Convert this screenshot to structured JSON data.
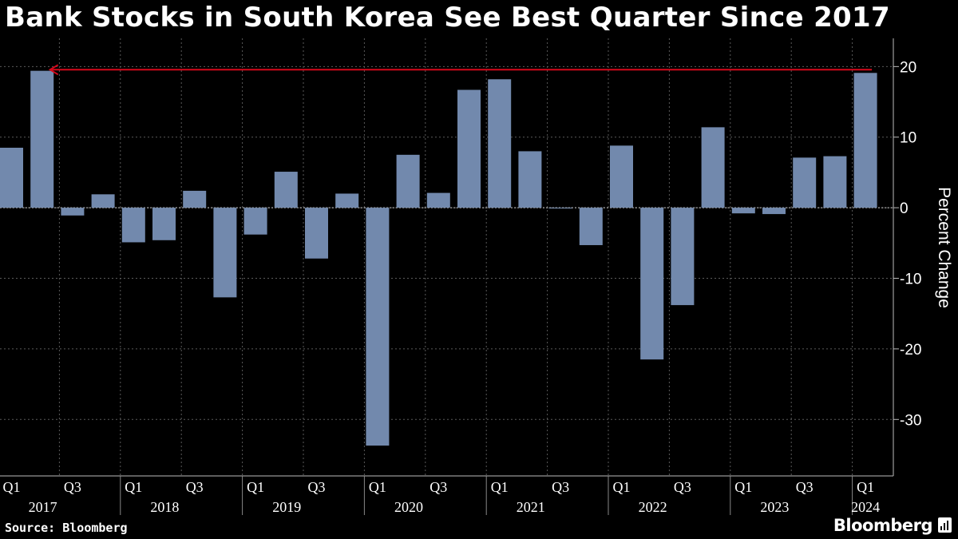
{
  "title": "Bank Stocks in South Korea See Best Quarter Since 2017",
  "source": "Source: Bloomberg",
  "brand": "Bloomberg",
  "colors": {
    "bar": "#7289ad",
    "arrow": "#d7081b",
    "grid": "#5a5a5a",
    "background": "#000000"
  },
  "chart_data": {
    "type": "bar",
    "ylabel": "Percent Change",
    "ylim": [
      -38,
      24
    ],
    "yticks": [
      20,
      10,
      0,
      -10,
      -20,
      -30
    ],
    "grid": true,
    "categories": [
      "2017 Q1",
      "2017 Q2",
      "2017 Q3",
      "2017 Q4",
      "2018 Q1",
      "2018 Q2",
      "2018 Q3",
      "2018 Q4",
      "2019 Q1",
      "2019 Q2",
      "2019 Q3",
      "2019 Q4",
      "2020 Q1",
      "2020 Q2",
      "2020 Q3",
      "2020 Q4",
      "2021 Q1",
      "2021 Q2",
      "2021 Q3",
      "2021 Q4",
      "2022 Q1",
      "2022 Q2",
      "2022 Q3",
      "2022 Q4",
      "2023 Q1",
      "2023 Q2",
      "2023 Q3",
      "2023 Q4",
      "2024 Q1"
    ],
    "values": [
      8.5,
      19.4,
      -1.1,
      1.9,
      -4.9,
      -4.6,
      2.4,
      -12.7,
      -3.8,
      5.1,
      -7.2,
      2.0,
      -33.7,
      7.5,
      2.1,
      16.7,
      18.2,
      8.0,
      -0.1,
      -5.3,
      8.8,
      -21.5,
      -13.8,
      11.4,
      -0.8,
      -0.9,
      7.1,
      7.3,
      19.1
    ],
    "x_quarter_labels": [
      "Q1",
      "Q3"
    ],
    "x_year_labels": [
      "2017",
      "2018",
      "2019",
      "2020",
      "2021",
      "2022",
      "2023",
      "2024"
    ],
    "annotation": {
      "type": "arrow",
      "from_category": "2024 Q1",
      "to_category": "2017 Q2",
      "value": 19.1
    }
  }
}
